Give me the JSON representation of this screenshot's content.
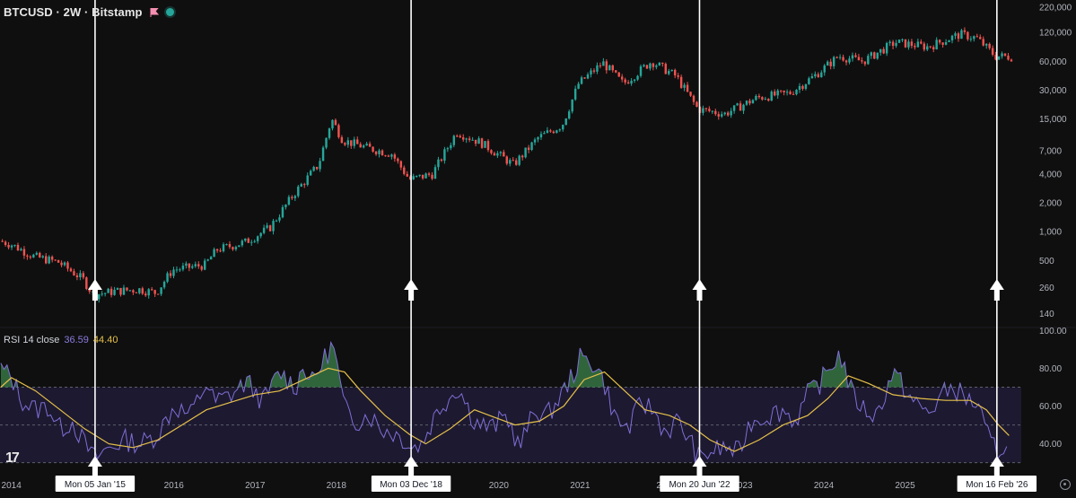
{
  "header": {
    "symbol": "BTCUSD · 2W · Bitstamp",
    "flag_icon": "flag-icon",
    "status_icon": "live-dot-icon"
  },
  "rsi_legend": {
    "title": "RSI 14 close",
    "rsi_value": "36.59",
    "ma_value": "44.40"
  },
  "colors": {
    "background": "#0f0f0f",
    "up": "#26a69a",
    "down": "#ef5350",
    "rsi_line": "#7e6fd6",
    "rsi_ma": "#e5c04a",
    "rsi_band": "#1d1930",
    "overbought_fill": "#3f8a4e"
  },
  "chart_data": [
    {
      "type": "candlestick",
      "series": [
        {
          "name": "BTCUSD · 2W · Bitstamp"
        }
      ],
      "yscale": "log",
      "ylim": [
        100,
        220000
      ],
      "yticks": [
        140,
        260,
        500,
        1000,
        2000,
        4000,
        7000,
        15000,
        30000,
        60000,
        120000,
        220000
      ],
      "ytick_labels": [
        "140",
        "260",
        "500",
        "1,000",
        "2,000",
        "4,000",
        "7,000",
        "15,000",
        "30,000",
        "60,000",
        "120,000",
        "220,000"
      ],
      "xlim": [
        2013.86,
        2026.43
      ],
      "xticks": [
        2014,
        2016,
        2017,
        2018,
        2020,
        2021,
        2023,
        2024,
        2025
      ],
      "xtick_labels": [
        "2014",
        "2016",
        "2017",
        "2018",
        "2020",
        "2021",
        "2023",
        "2024",
        "2025"
      ],
      "partial_tick_labels": [
        {
          "x": 2022,
          "label": "20"
        },
        {
          "x": 2026.4,
          "label": "202"
        }
      ],
      "price_path": [
        {
          "x": 2013.87,
          "y": 800
        },
        {
          "x": 2014.0,
          "y": 750
        },
        {
          "x": 2014.3,
          "y": 550
        },
        {
          "x": 2014.6,
          "y": 480
        },
        {
          "x": 2014.9,
          "y": 320
        },
        {
          "x": 2015.03,
          "y": 220
        },
        {
          "x": 2015.3,
          "y": 240
        },
        {
          "x": 2015.6,
          "y": 250
        },
        {
          "x": 2015.8,
          "y": 230
        },
        {
          "x": 2016.0,
          "y": 400
        },
        {
          "x": 2016.4,
          "y": 450
        },
        {
          "x": 2016.55,
          "y": 650
        },
        {
          "x": 2016.9,
          "y": 780
        },
        {
          "x": 2017.2,
          "y": 1100
        },
        {
          "x": 2017.5,
          "y": 2500
        },
        {
          "x": 2017.8,
          "y": 5000
        },
        {
          "x": 2017.96,
          "y": 15000
        },
        {
          "x": 2018.1,
          "y": 9000
        },
        {
          "x": 2018.4,
          "y": 7500
        },
        {
          "x": 2018.7,
          "y": 6500
        },
        {
          "x": 2018.92,
          "y": 3500
        },
        {
          "x": 2019.2,
          "y": 4000
        },
        {
          "x": 2019.5,
          "y": 11000
        },
        {
          "x": 2019.8,
          "y": 8500
        },
        {
          "x": 2020.2,
          "y": 5000
        },
        {
          "x": 2020.5,
          "y": 9500
        },
        {
          "x": 2020.8,
          "y": 13000
        },
        {
          "x": 2021.0,
          "y": 35000
        },
        {
          "x": 2021.3,
          "y": 58000
        },
        {
          "x": 2021.55,
          "y": 35000
        },
        {
          "x": 2021.9,
          "y": 60000
        },
        {
          "x": 2022.2,
          "y": 42000
        },
        {
          "x": 2022.47,
          "y": 19000
        },
        {
          "x": 2022.8,
          "y": 17000
        },
        {
          "x": 2023.2,
          "y": 25000
        },
        {
          "x": 2023.6,
          "y": 28000
        },
        {
          "x": 2023.9,
          "y": 42000
        },
        {
          "x": 2024.2,
          "y": 68000
        },
        {
          "x": 2024.5,
          "y": 60000
        },
        {
          "x": 2024.9,
          "y": 95000
        },
        {
          "x": 2025.3,
          "y": 85000
        },
        {
          "x": 2025.7,
          "y": 115000
        },
        {
          "x": 2025.9,
          "y": 105000
        },
        {
          "x": 2026.13,
          "y": 68000
        },
        {
          "x": 2026.3,
          "y": 67000
        }
      ],
      "vertical_markers": [
        {
          "x": 2015.03,
          "label": "Mon 05 Jan '15"
        },
        {
          "x": 2018.92,
          "label": "Mon 03 Dec '18"
        },
        {
          "x": 2022.47,
          "label": "Mon 20 Jun '22"
        },
        {
          "x": 2026.13,
          "label": "Mon 16 Feb '26"
        }
      ]
    },
    {
      "type": "line",
      "title": "RSI 14 close",
      "series": [
        {
          "name": "RSI"
        },
        {
          "name": "RSI MA"
        }
      ],
      "ylim": [
        27,
        103
      ],
      "yticks": [
        40,
        60,
        80,
        100
      ],
      "ytick_labels": [
        "40.00",
        "60.00",
        "80.00",
        "100.00"
      ],
      "bands": {
        "upper": 70,
        "middle": 50,
        "lower": 30
      },
      "rsi_points": [
        {
          "x": 2013.87,
          "y": 80
        },
        {
          "x": 2014.0,
          "y": 75
        },
        {
          "x": 2014.15,
          "y": 62
        },
        {
          "x": 2014.3,
          "y": 58
        },
        {
          "x": 2014.45,
          "y": 60
        },
        {
          "x": 2014.6,
          "y": 48
        },
        {
          "x": 2014.75,
          "y": 52
        },
        {
          "x": 2014.9,
          "y": 40
        },
        {
          "x": 2015.03,
          "y": 32
        },
        {
          "x": 2015.2,
          "y": 38
        },
        {
          "x": 2015.4,
          "y": 42
        },
        {
          "x": 2015.6,
          "y": 40
        },
        {
          "x": 2015.8,
          "y": 45
        },
        {
          "x": 2016.0,
          "y": 60
        },
        {
          "x": 2016.2,
          "y": 55
        },
        {
          "x": 2016.4,
          "y": 72
        },
        {
          "x": 2016.5,
          "y": 62
        },
        {
          "x": 2016.7,
          "y": 66
        },
        {
          "x": 2016.9,
          "y": 73
        },
        {
          "x": 2017.1,
          "y": 62
        },
        {
          "x": 2017.3,
          "y": 78
        },
        {
          "x": 2017.5,
          "y": 70
        },
        {
          "x": 2017.6,
          "y": 82
        },
        {
          "x": 2017.7,
          "y": 72
        },
        {
          "x": 2017.85,
          "y": 85
        },
        {
          "x": 2017.96,
          "y": 93
        },
        {
          "x": 2018.1,
          "y": 58
        },
        {
          "x": 2018.25,
          "y": 52
        },
        {
          "x": 2018.4,
          "y": 56
        },
        {
          "x": 2018.55,
          "y": 48
        },
        {
          "x": 2018.7,
          "y": 46
        },
        {
          "x": 2018.85,
          "y": 42
        },
        {
          "x": 2018.92,
          "y": 38
        },
        {
          "x": 2019.05,
          "y": 40
        },
        {
          "x": 2019.25,
          "y": 58
        },
        {
          "x": 2019.5,
          "y": 70
        },
        {
          "x": 2019.7,
          "y": 52
        },
        {
          "x": 2019.9,
          "y": 48
        },
        {
          "x": 2020.1,
          "y": 55
        },
        {
          "x": 2020.25,
          "y": 38
        },
        {
          "x": 2020.45,
          "y": 58
        },
        {
          "x": 2020.6,
          "y": 55
        },
        {
          "x": 2020.8,
          "y": 68
        },
        {
          "x": 2020.95,
          "y": 80
        },
        {
          "x": 2021.0,
          "y": 85
        },
        {
          "x": 2021.2,
          "y": 82
        },
        {
          "x": 2021.3,
          "y": 72
        },
        {
          "x": 2021.45,
          "y": 52
        },
        {
          "x": 2021.6,
          "y": 48
        },
        {
          "x": 2021.75,
          "y": 62
        },
        {
          "x": 2021.9,
          "y": 58
        },
        {
          "x": 2022.05,
          "y": 46
        },
        {
          "x": 2022.2,
          "y": 52
        },
        {
          "x": 2022.35,
          "y": 42
        },
        {
          "x": 2022.47,
          "y": 31
        },
        {
          "x": 2022.6,
          "y": 36
        },
        {
          "x": 2022.8,
          "y": 38
        },
        {
          "x": 2022.95,
          "y": 35
        },
        {
          "x": 2023.1,
          "y": 52
        },
        {
          "x": 2023.3,
          "y": 55
        },
        {
          "x": 2023.5,
          "y": 58
        },
        {
          "x": 2023.65,
          "y": 52
        },
        {
          "x": 2023.8,
          "y": 66
        },
        {
          "x": 2023.95,
          "y": 72
        },
        {
          "x": 2024.1,
          "y": 82
        },
        {
          "x": 2024.2,
          "y": 88
        },
        {
          "x": 2024.35,
          "y": 66
        },
        {
          "x": 2024.5,
          "y": 58
        },
        {
          "x": 2024.65,
          "y": 55
        },
        {
          "x": 2024.85,
          "y": 78
        },
        {
          "x": 2024.95,
          "y": 72
        },
        {
          "x": 2025.1,
          "y": 62
        },
        {
          "x": 2025.3,
          "y": 56
        },
        {
          "x": 2025.45,
          "y": 66
        },
        {
          "x": 2025.6,
          "y": 70
        },
        {
          "x": 2025.75,
          "y": 64
        },
        {
          "x": 2025.9,
          "y": 60
        },
        {
          "x": 2026.0,
          "y": 45
        },
        {
          "x": 2026.13,
          "y": 36
        },
        {
          "x": 2026.2,
          "y": 39
        },
        {
          "x": 2026.28,
          "y": 36.59
        }
      ],
      "ma_points": [
        {
          "x": 2013.87,
          "y": 70
        },
        {
          "x": 2014.0,
          "y": 75
        },
        {
          "x": 2014.3,
          "y": 68
        },
        {
          "x": 2014.6,
          "y": 58
        },
        {
          "x": 2014.9,
          "y": 48
        },
        {
          "x": 2015.2,
          "y": 40
        },
        {
          "x": 2015.5,
          "y": 38
        },
        {
          "x": 2015.8,
          "y": 42
        },
        {
          "x": 2016.1,
          "y": 50
        },
        {
          "x": 2016.4,
          "y": 58
        },
        {
          "x": 2016.7,
          "y": 62
        },
        {
          "x": 2017.0,
          "y": 66
        },
        {
          "x": 2017.3,
          "y": 68
        },
        {
          "x": 2017.6,
          "y": 74
        },
        {
          "x": 2017.9,
          "y": 80
        },
        {
          "x": 2018.1,
          "y": 78
        },
        {
          "x": 2018.3,
          "y": 68
        },
        {
          "x": 2018.6,
          "y": 55
        },
        {
          "x": 2018.9,
          "y": 45
        },
        {
          "x": 2019.1,
          "y": 40
        },
        {
          "x": 2019.4,
          "y": 48
        },
        {
          "x": 2019.7,
          "y": 58
        },
        {
          "x": 2019.95,
          "y": 54
        },
        {
          "x": 2020.2,
          "y": 50
        },
        {
          "x": 2020.5,
          "y": 52
        },
        {
          "x": 2020.8,
          "y": 60
        },
        {
          "x": 2021.05,
          "y": 74
        },
        {
          "x": 2021.3,
          "y": 78
        },
        {
          "x": 2021.55,
          "y": 68
        },
        {
          "x": 2021.8,
          "y": 58
        },
        {
          "x": 2022.1,
          "y": 55
        },
        {
          "x": 2022.35,
          "y": 50
        },
        {
          "x": 2022.6,
          "y": 42
        },
        {
          "x": 2022.9,
          "y": 36
        },
        {
          "x": 2023.2,
          "y": 42
        },
        {
          "x": 2023.5,
          "y": 50
        },
        {
          "x": 2023.8,
          "y": 55
        },
        {
          "x": 2024.05,
          "y": 64
        },
        {
          "x": 2024.3,
          "y": 76
        },
        {
          "x": 2024.55,
          "y": 72
        },
        {
          "x": 2024.85,
          "y": 66
        },
        {
          "x": 2025.2,
          "y": 64
        },
        {
          "x": 2025.5,
          "y": 63
        },
        {
          "x": 2025.8,
          "y": 63
        },
        {
          "x": 2026.0,
          "y": 58
        },
        {
          "x": 2026.15,
          "y": 50
        },
        {
          "x": 2026.28,
          "y": 44.4
        }
      ]
    }
  ]
}
